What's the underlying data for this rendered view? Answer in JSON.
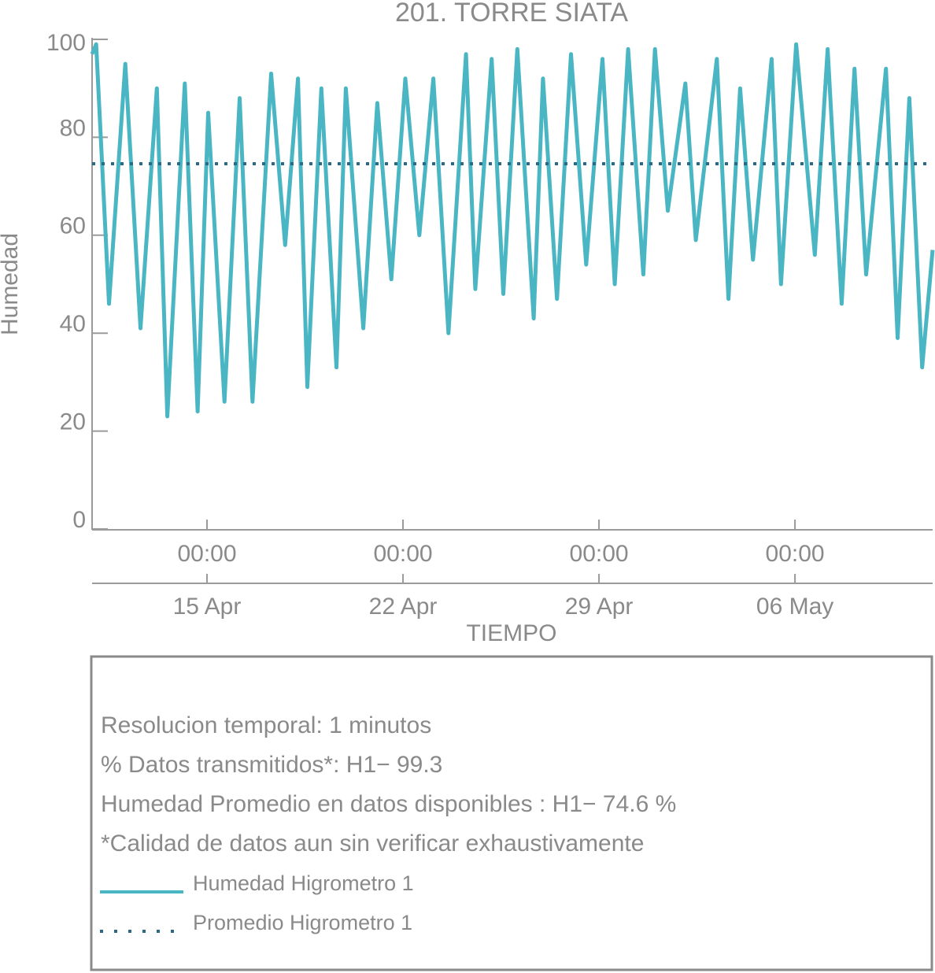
{
  "chart_data": {
    "type": "line",
    "title": "201. TORRE SIATA",
    "y_label": "Humedad",
    "x_label": "TIEMPO",
    "x": [
      "10 Apr 21:30",
      "11 Apr 01:00",
      "11 Apr 12:00",
      "12 Apr 02:00",
      "12 Apr 15:00",
      "13 Apr 05:00",
      "13 Apr 14:00",
      "14 Apr 05:00",
      "14 Apr 16:00",
      "15 Apr 01:00",
      "15 Apr 15:00",
      "16 Apr 04:00",
      "16 Apr 15:00",
      "17 Apr 07:00",
      "17 Apr 19:00",
      "18 Apr 06:00",
      "18 Apr 14:00",
      "19 Apr 02:00",
      "19 Apr 15:00",
      "19 Apr 23:00",
      "20 Apr 14:00",
      "21 Apr 02:00",
      "21 Apr 14:00",
      "22 Apr 02:00",
      "22 Apr 14:00",
      "23 Apr 02:00",
      "23 Apr 15:00",
      "24 Apr 06:00",
      "24 Apr 14:00",
      "25 Apr 04:00",
      "25 Apr 14:00",
      "26 Apr 02:00",
      "26 Apr 16:00",
      "27 Apr 00:00",
      "27 Apr 12:00",
      "28 Apr 00:00",
      "28 Apr 13:00",
      "29 Apr 03:00",
      "29 Apr 13:30",
      "30 Apr 01:00",
      "30 Apr 14:00",
      "1 May 00:00",
      "1 May 11:00",
      "2 May 02:00",
      "2 May 11:00",
      "3 May 05:00",
      "3 May 15:00",
      "4 May 01:00",
      "4 May 12:00",
      "5 May 04:00",
      "5 May 12:00",
      "6 May 01:00",
      "6 May 17:00",
      "7 May 04:00",
      "7 May 16:00",
      "8 May 03:00",
      "8 May 13:00",
      "9 May 06:00",
      "9 May 16:00",
      "10 May 02:00",
      "10 May 13:00",
      "10 May 22:00"
    ],
    "series": [
      {
        "name": "Humedad Higrometro 1",
        "color": "#4bb6c3",
        "values": [
          97,
          99,
          46,
          95,
          41,
          90,
          23,
          91,
          24,
          85,
          26,
          88,
          26,
          93,
          58,
          92,
          29,
          90,
          33,
          90,
          41,
          87,
          51,
          92,
          60,
          92,
          40,
          97,
          49,
          96,
          48,
          98,
          43,
          92,
          47,
          97,
          54,
          96,
          50,
          98,
          52,
          98,
          65,
          91,
          59,
          96,
          47,
          90,
          55,
          96,
          50,
          99,
          56,
          98,
          46,
          94,
          52,
          94,
          39,
          88,
          33,
          57
        ]
      }
    ],
    "mean": {
      "name": "Promedio Higrometro 1",
      "color": "#2a6a86",
      "value": 74.6
    },
    "xlim": [
      "10 Apr 21:30",
      "10 May 22:00"
    ],
    "xticks": [
      {
        "value": "15 Apr 00:00",
        "label": [
          "00:00",
          "15 Apr"
        ]
      },
      {
        "value": "22 Apr 00:00",
        "label": [
          "00:00",
          "22 Apr"
        ]
      },
      {
        "value": "29 Apr 00:00",
        "label": [
          "00:00",
          "29 Apr"
        ]
      },
      {
        "value": "6 May 00:00",
        "label": [
          "00:00",
          "06 May"
        ]
      }
    ],
    "ylim": [
      0,
      100
    ],
    "yticks": [
      0,
      20,
      40,
      60,
      80,
      100
    ],
    "notes": [
      "Resolucion temporal: 1 minutos",
      "% Datos transmitidos*: H1− 99.3",
      "Humedad Promedio en datos disponibles : H1− 74.6 %",
      "*Calidad de datos aun sin verificar exhaustivamente"
    ]
  }
}
